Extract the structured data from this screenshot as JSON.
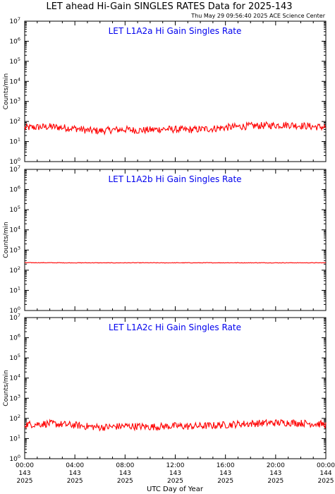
{
  "header": {
    "title": "LET ahead Hi-Gain SINGLES RATES Data for 2025-143",
    "timestamp": "Thu May 29 09:56:40 2025 ACE Science Center"
  },
  "chart_data": [
    {
      "type": "line",
      "title": "LET L1A2a Hi Gain Singles Rate",
      "ylabel": "Counts/min",
      "yscale": "log",
      "ylim": [
        1,
        10000000
      ],
      "y_ticks": [
        "10^0",
        "10^1",
        "10^2",
        "10^3",
        "10^4",
        "10^5",
        "10^6",
        "10^7"
      ],
      "xlim": [
        0,
        24
      ],
      "line_color": "#ff0000",
      "series": [
        {
          "x": [
            0,
            1,
            2,
            3,
            4,
            5,
            6,
            7,
            8,
            9,
            10,
            11,
            12,
            13,
            14,
            15,
            16,
            17,
            18,
            19,
            20,
            21,
            22,
            23,
            24
          ],
          "values": [
            48,
            52,
            55,
            50,
            45,
            36,
            34,
            38,
            40,
            36,
            38,
            42,
            40,
            38,
            41,
            44,
            50,
            55,
            60,
            62,
            65,
            68,
            62,
            55,
            52
          ]
        }
      ]
    },
    {
      "type": "line",
      "title": "LET L1A2b Hi Gain Singles Rate",
      "ylabel": "Counts/min",
      "yscale": "log",
      "ylim": [
        1,
        10000000
      ],
      "y_ticks": [
        "10^0",
        "10^1",
        "10^2",
        "10^3",
        "10^4",
        "10^5",
        "10^6",
        "10^7"
      ],
      "xlim": [
        0,
        24
      ],
      "line_color": "#ff0000",
      "series": [
        {
          "x": [
            0,
            1,
            2,
            3,
            4,
            5,
            6,
            7,
            8,
            9,
            10,
            11,
            12,
            13,
            14,
            15,
            16,
            17,
            18,
            19,
            20,
            21,
            22,
            23,
            24
          ],
          "values": [
            235,
            236,
            234,
            233,
            232,
            233,
            232,
            231,
            232,
            233,
            232,
            231,
            232,
            233,
            232,
            233,
            234,
            233,
            232,
            233,
            232,
            233,
            232,
            232,
            233
          ]
        }
      ]
    },
    {
      "type": "line",
      "title": "LET L1A2c Hi Gain Singles Rate",
      "ylabel": "Counts/min",
      "yscale": "log",
      "ylim": [
        1,
        10000000
      ],
      "y_ticks": [
        "10^0",
        "10^1",
        "10^2",
        "10^3",
        "10^4",
        "10^5",
        "10^6",
        "10^7"
      ],
      "xlim": [
        0,
        24
      ],
      "line_color": "#ff0000",
      "series": [
        {
          "x": [
            0,
            1,
            2,
            3,
            4,
            5,
            6,
            7,
            8,
            9,
            10,
            11,
            12,
            13,
            14,
            15,
            16,
            17,
            18,
            19,
            20,
            21,
            22,
            23,
            24
          ],
          "values": [
            50,
            52,
            55,
            50,
            46,
            40,
            36,
            38,
            42,
            40,
            38,
            40,
            42,
            40,
            42,
            44,
            48,
            52,
            55,
            58,
            60,
            62,
            58,
            55,
            50
          ]
        }
      ]
    }
  ],
  "x_axis": {
    "label": "UTC Day of Year",
    "ticks": [
      {
        "time": "00:00",
        "day": "143",
        "year": "2025"
      },
      {
        "time": "04:00",
        "day": "143",
        "year": "2025"
      },
      {
        "time": "08:00",
        "day": "143",
        "year": "2025"
      },
      {
        "time": "12:00",
        "day": "143",
        "year": "2025"
      },
      {
        "time": "16:00",
        "day": "143",
        "year": "2025"
      },
      {
        "time": "20:00",
        "day": "143",
        "year": "2025"
      },
      {
        "time": "00:00",
        "day": "144",
        "year": "2025"
      }
    ]
  }
}
